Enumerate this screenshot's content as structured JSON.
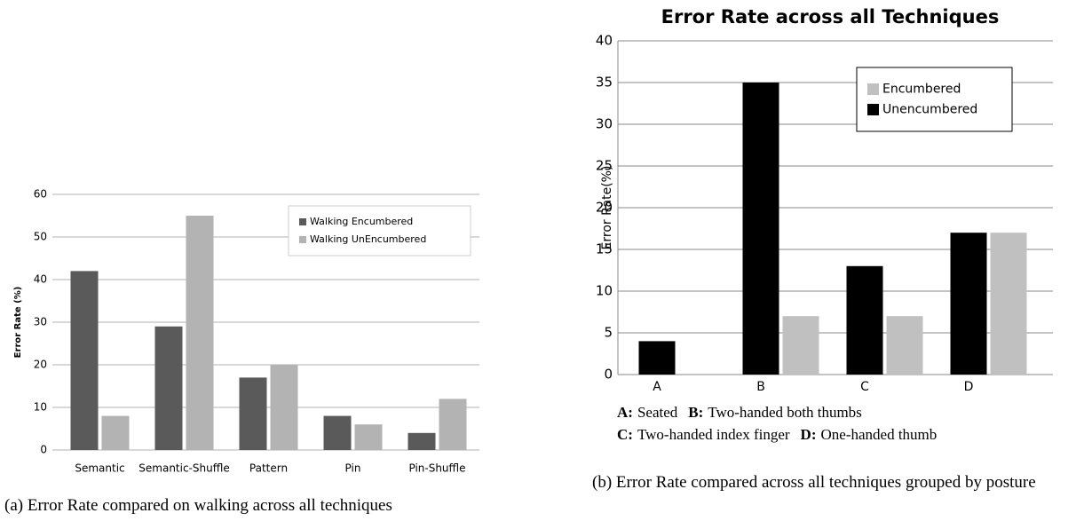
{
  "chart_data": [
    {
      "type": "bar",
      "caption": "(a) Error Rate compared on walking across all techniques",
      "ylabel": "Error Rate (%)",
      "categories": [
        "Semantic",
        "Semantic-Shuffle",
        "Pattern",
        "Pin",
        "Pin-Shuffle"
      ],
      "series": [
        {
          "name": "Walking Encumbered",
          "color": "#5a5a5a",
          "values": [
            42,
            29,
            17,
            8,
            4
          ]
        },
        {
          "name": "Walking UnEncumbered",
          "color": "#b3b3b3",
          "values": [
            8,
            55,
            20,
            6,
            12
          ]
        }
      ],
      "ylim": [
        0,
        60
      ],
      "yticks": [
        0,
        10,
        20,
        30,
        40,
        50,
        60
      ],
      "grid": true,
      "legend": "upper right"
    },
    {
      "type": "bar",
      "title": "Error Rate across all Techniques",
      "caption": "(b) Error Rate compared across all techniques grouped by posture",
      "ylabel": "Error Rate(%)",
      "categories": [
        "A",
        "B",
        "C",
        "D"
      ],
      "series": [
        {
          "name": "Encumbered",
          "color": "#c0c0c0",
          "values": [
            0,
            7,
            7,
            17
          ]
        },
        {
          "name": "Unencumbered",
          "color": "#000000",
          "values": [
            4,
            35,
            13,
            17
          ]
        }
      ],
      "ylim": [
        0,
        40
      ],
      "yticks": [
        0,
        5,
        10,
        15,
        20,
        25,
        30,
        35,
        40
      ],
      "grid": true,
      "legend": "upper right",
      "notes": [
        [
          {
            "key": "A:",
            "text": "Seated"
          },
          {
            "key": "B:",
            "text": "Two-handed both thumbs"
          }
        ],
        [
          {
            "key": "C:",
            "text": "Two-handed index finger"
          },
          {
            "key": "D:",
            "text": "One-handed thumb"
          }
        ]
      ]
    }
  ]
}
